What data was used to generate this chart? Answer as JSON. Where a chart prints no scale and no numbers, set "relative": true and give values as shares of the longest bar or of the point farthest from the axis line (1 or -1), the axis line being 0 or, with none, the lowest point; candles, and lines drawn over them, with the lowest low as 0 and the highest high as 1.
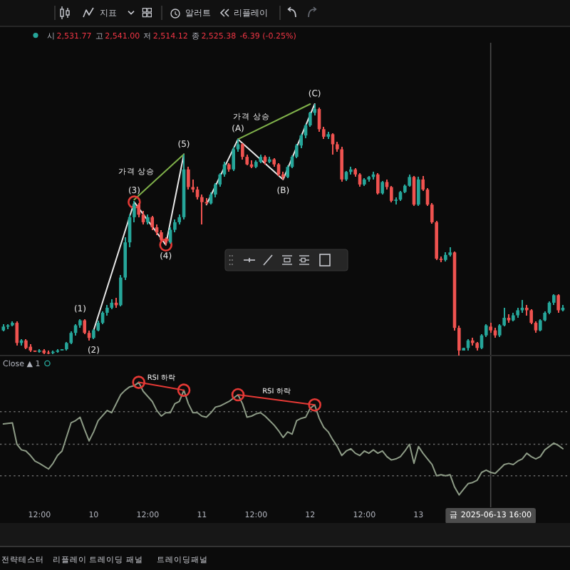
{
  "chart_data": [
    {
      "type": "candlestick",
      "relative": true,
      "xlim": [
        "2025-06-09T03:15",
        "2025-06-14T09:35"
      ],
      "x": [
        "2025-06-09T04:00",
        "2025-06-09T05:00",
        "2025-06-09T06:00",
        "2025-06-09T07:00",
        "2025-06-09T08:00",
        "2025-06-09T09:00",
        "2025-06-09T10:00",
        "2025-06-09T11:00",
        "2025-06-09T12:00",
        "2025-06-09T13:00",
        "2025-06-09T14:00",
        "2025-06-09T15:00",
        "2025-06-09T16:00",
        "2025-06-09T17:00",
        "2025-06-09T18:00",
        "2025-06-09T19:00",
        "2025-06-09T20:00",
        "2025-06-09T21:00",
        "2025-06-09T22:00",
        "2025-06-09T23:00",
        "2025-06-10T00:00",
        "2025-06-10T01:00",
        "2025-06-10T02:00",
        "2025-06-10T03:00",
        "2025-06-10T04:00",
        "2025-06-10T05:00",
        "2025-06-10T06:00",
        "2025-06-10T07:00",
        "2025-06-10T08:00",
        "2025-06-10T09:00",
        "2025-06-10T10:00",
        "2025-06-10T11:00",
        "2025-06-10T12:00",
        "2025-06-10T13:00",
        "2025-06-10T14:00",
        "2025-06-10T15:00",
        "2025-06-10T16:00",
        "2025-06-10T17:00",
        "2025-06-10T18:00",
        "2025-06-10T19:00",
        "2025-06-10T20:00",
        "2025-06-10T21:00",
        "2025-06-10T22:00",
        "2025-06-10T23:00",
        "2025-06-11T00:00",
        "2025-06-11T01:00",
        "2025-06-11T02:00",
        "2025-06-11T03:00",
        "2025-06-11T04:00",
        "2025-06-11T05:00",
        "2025-06-11T06:00",
        "2025-06-11T07:00",
        "2025-06-11T08:00",
        "2025-06-11T09:00",
        "2025-06-11T10:00",
        "2025-06-11T11:00",
        "2025-06-11T12:00",
        "2025-06-11T13:00",
        "2025-06-11T14:00",
        "2025-06-11T15:00",
        "2025-06-11T16:00",
        "2025-06-11T17:00",
        "2025-06-11T18:00",
        "2025-06-11T19:00",
        "2025-06-11T20:00",
        "2025-06-11T21:00",
        "2025-06-11T22:00",
        "2025-06-11T23:00",
        "2025-06-12T00:00",
        "2025-06-12T01:00",
        "2025-06-12T02:00",
        "2025-06-12T03:00",
        "2025-06-12T04:00",
        "2025-06-12T05:00",
        "2025-06-12T06:00",
        "2025-06-12T07:00",
        "2025-06-12T08:00",
        "2025-06-12T09:00",
        "2025-06-12T10:00",
        "2025-06-12T11:00",
        "2025-06-12T12:00",
        "2025-06-12T13:00",
        "2025-06-12T14:00",
        "2025-06-12T15:00",
        "2025-06-12T16:00",
        "2025-06-12T17:00",
        "2025-06-12T18:00",
        "2025-06-12T19:00",
        "2025-06-12T20:00",
        "2025-06-12T21:00",
        "2025-06-12T22:00",
        "2025-06-12T23:00",
        "2025-06-13T00:00",
        "2025-06-13T01:00",
        "2025-06-13T02:00",
        "2025-06-13T03:00",
        "2025-06-13T04:00",
        "2025-06-13T05:00",
        "2025-06-13T06:00",
        "2025-06-13T07:00",
        "2025-06-13T08:00",
        "2025-06-13T09:00",
        "2025-06-13T10:00",
        "2025-06-13T11:00",
        "2025-06-13T12:00",
        "2025-06-13T13:00",
        "2025-06-13T14:00",
        "2025-06-13T15:00",
        "2025-06-13T16:00",
        "2025-06-13T17:00",
        "2025-06-13T18:00",
        "2025-06-13T19:00",
        "2025-06-13T20:00",
        "2025-06-13T21:00",
        "2025-06-13T22:00",
        "2025-06-13T23:00",
        "2025-06-14T00:00",
        "2025-06-14T01:00",
        "2025-06-14T02:00",
        "2025-06-14T03:00",
        "2025-06-14T04:00",
        "2025-06-14T05:00",
        "2025-06-14T06:00",
        "2025-06-14T07:00",
        "2025-06-14T08:00"
      ],
      "ohlc": [
        [
          0.1,
          0.125,
          0.095,
          0.115
        ],
        [
          0.115,
          0.125,
          0.105,
          0.12
        ],
        [
          0.12,
          0.135,
          0.115,
          0.13
        ],
        [
          0.13,
          0.135,
          0.04,
          0.05
        ],
        [
          0.05,
          0.065,
          0.04,
          0.06
        ],
        [
          0.06,
          0.065,
          0.025,
          0.03
        ],
        [
          0.035,
          0.045,
          0.015,
          0.02
        ],
        [
          0.02,
          0.02,
          0.015,
          0.015
        ],
        [
          0.015,
          0.025,
          0.01,
          0.02
        ],
        [
          0.02,
          0.025,
          0.005,
          0.01
        ],
        [
          0.012,
          0.02,
          0.005,
          0.01
        ],
        [
          0.01,
          0.02,
          0.005,
          0.015
        ],
        [
          0.015,
          0.025,
          0.01,
          0.02
        ],
        [
          0.02,
          0.025,
          0.02,
          0.025
        ],
        [
          0.025,
          0.055,
          0.02,
          0.05
        ],
        [
          0.05,
          0.095,
          0.045,
          0.09
        ],
        [
          0.09,
          0.125,
          0.08,
          0.12
        ],
        [
          0.12,
          0.145,
          0.11,
          0.14
        ],
        [
          0.14,
          0.145,
          0.085,
          0.09
        ],
        [
          0.09,
          0.1,
          0.06,
          0.07
        ],
        [
          0.07,
          0.105,
          0.065,
          0.1
        ],
        [
          0.1,
          0.14,
          0.095,
          0.13
        ],
        [
          0.13,
          0.175,
          0.125,
          0.17
        ],
        [
          0.17,
          0.2,
          0.16,
          0.19
        ],
        [
          0.19,
          0.225,
          0.185,
          0.21
        ],
        [
          0.21,
          0.23,
          0.19,
          0.2
        ],
        [
          0.2,
          0.32,
          0.195,
          0.31
        ],
        [
          0.31,
          0.47,
          0.3,
          0.45
        ],
        [
          0.45,
          0.56,
          0.43,
          0.55
        ],
        [
          0.55,
          0.615,
          0.53,
          0.6
        ],
        [
          0.6,
          0.605,
          0.55,
          0.56
        ],
        [
          0.56,
          0.575,
          0.52,
          0.53
        ],
        [
          0.53,
          0.56,
          0.52,
          0.55
        ],
        [
          0.55,
          0.555,
          0.5,
          0.51
        ],
        [
          0.51,
          0.52,
          0.48,
          0.49
        ],
        [
          0.49,
          0.5,
          0.455,
          0.46
        ],
        [
          0.46,
          0.47,
          0.44,
          0.45
        ],
        [
          0.45,
          0.51,
          0.445,
          0.5
        ],
        [
          0.5,
          0.54,
          0.49,
          0.53
        ],
        [
          0.53,
          0.56,
          0.52,
          0.55
        ],
        [
          0.55,
          0.8,
          0.54,
          0.74
        ],
        [
          0.74,
          0.75,
          0.66,
          0.67
        ],
        [
          0.67,
          0.7,
          0.65,
          0.66
        ],
        [
          0.66,
          0.67,
          0.62,
          0.63
        ],
        [
          0.63,
          0.64,
          0.52,
          0.61
        ],
        [
          0.61,
          0.625,
          0.6,
          0.605
        ],
        [
          0.605,
          0.65,
          0.6,
          0.64
        ],
        [
          0.64,
          0.685,
          0.63,
          0.68
        ],
        [
          0.68,
          0.725,
          0.67,
          0.72
        ],
        [
          0.72,
          0.77,
          0.71,
          0.76
        ],
        [
          0.76,
          0.765,
          0.73,
          0.74
        ],
        [
          0.74,
          0.83,
          0.735,
          0.82
        ],
        [
          0.82,
          0.86,
          0.81,
          0.84
        ],
        [
          0.84,
          0.845,
          0.78,
          0.79
        ],
        [
          0.79,
          0.8,
          0.755,
          0.76
        ],
        [
          0.76,
          0.775,
          0.745,
          0.75
        ],
        [
          0.75,
          0.775,
          0.745,
          0.77
        ],
        [
          0.77,
          0.8,
          0.765,
          0.79
        ],
        [
          0.79,
          0.795,
          0.76,
          0.77
        ],
        [
          0.77,
          0.79,
          0.765,
          0.78
        ],
        [
          0.78,
          0.785,
          0.75,
          0.76
        ],
        [
          0.76,
          0.765,
          0.715,
          0.72
        ],
        [
          0.72,
          0.73,
          0.7,
          0.71
        ],
        [
          0.71,
          0.755,
          0.705,
          0.75
        ],
        [
          0.75,
          0.795,
          0.745,
          0.79
        ],
        [
          0.79,
          0.84,
          0.785,
          0.835
        ],
        [
          0.835,
          0.88,
          0.825,
          0.875
        ],
        [
          0.875,
          0.92,
          0.865,
          0.915
        ],
        [
          0.915,
          0.97,
          0.91,
          0.965
        ],
        [
          0.965,
          1,
          0.955,
          0.98
        ],
        [
          0.98,
          0.985,
          0.89,
          0.9
        ],
        [
          0.9,
          0.91,
          0.86,
          0.87
        ],
        [
          0.87,
          0.89,
          0.86,
          0.88
        ],
        [
          0.88,
          0.885,
          0.8,
          0.84
        ],
        [
          0.84,
          0.85,
          0.81,
          0.82
        ],
        [
          0.82,
          0.83,
          0.69,
          0.7
        ],
        [
          0.7,
          0.735,
          0.695,
          0.73
        ],
        [
          0.73,
          0.75,
          0.72,
          0.74
        ],
        [
          0.74,
          0.745,
          0.71,
          0.72
        ],
        [
          0.72,
          0.725,
          0.67,
          0.68
        ],
        [
          0.68,
          0.705,
          0.675,
          0.7
        ],
        [
          0.7,
          0.715,
          0.69,
          0.71
        ],
        [
          0.71,
          0.73,
          0.7,
          0.72
        ],
        [
          0.72,
          0.725,
          0.64,
          0.645
        ],
        [
          0.645,
          0.695,
          0.64,
          0.69
        ],
        [
          0.69,
          0.7,
          0.66,
          0.67
        ],
        [
          0.67,
          0.675,
          0.61,
          0.615
        ],
        [
          0.615,
          0.63,
          0.6,
          0.62
        ],
        [
          0.62,
          0.655,
          0.615,
          0.65
        ],
        [
          0.65,
          0.68,
          0.645,
          0.675
        ],
        [
          0.675,
          0.72,
          0.67,
          0.71
        ],
        [
          0.71,
          0.715,
          0.595,
          0.6
        ],
        [
          0.6,
          0.71,
          0.595,
          0.7
        ],
        [
          0.7,
          0.715,
          0.655,
          0.66
        ],
        [
          0.66,
          0.665,
          0.595,
          0.6
        ],
        [
          0.6,
          0.605,
          0.525,
          0.53
        ],
        [
          0.53,
          0.535,
          0.38,
          0.385
        ],
        [
          0.385,
          0.395,
          0.37,
          0.38
        ],
        [
          0.38,
          0.41,
          0.375,
          0.4
        ],
        [
          0.4,
          0.43,
          0.395,
          0.41
        ],
        [
          0.41,
          0.415,
          0.1,
          0.11
        ],
        [
          0.11,
          0.12,
          0,
          0.02
        ],
        [
          0.02,
          0.03,
          0.02,
          0.03
        ],
        [
          0.03,
          0.065,
          0.02,
          0.06
        ],
        [
          0.06,
          0.07,
          0.04,
          0.05
        ],
        [
          0.05,
          0.055,
          0.02,
          0.03
        ],
        [
          0.03,
          0.085,
          0.025,
          0.08
        ],
        [
          0.08,
          0.125,
          0.075,
          0.12
        ],
        [
          0.115,
          0.13,
          0.09,
          0.1
        ],
        [
          0.1,
          0.11,
          0.07,
          0.08
        ],
        [
          0.08,
          0.125,
          0.075,
          0.12
        ],
        [
          0.12,
          0.19,
          0.115,
          0.15
        ],
        [
          0.15,
          0.165,
          0.13,
          0.14
        ],
        [
          0.14,
          0.17,
          0.135,
          0.16
        ],
        [
          0.16,
          0.19,
          0.15,
          0.18
        ],
        [
          0.18,
          0.22,
          0.17,
          0.19
        ],
        [
          0.19,
          0.2,
          0.16,
          0.18
        ],
        [
          0.18,
          0.185,
          0.125,
          0.13
        ],
        [
          0.13,
          0.135,
          0.09,
          0.1
        ],
        [
          0.1,
          0.145,
          0.095,
          0.14
        ],
        [
          0.14,
          0.175,
          0.135,
          0.17
        ],
        [
          0.17,
          0.215,
          0.165,
          0.21
        ],
        [
          0.21,
          0.245,
          0.2,
          0.24
        ],
        [
          0.24,
          0.245,
          0.17,
          0.18
        ],
        [
          0.18,
          0.2,
          0.175,
          0.19
        ]
      ],
      "colors": [
        "#26a69a",
        "#26a69a",
        "#26a69a",
        "#ef5350",
        "#26a69a",
        "#ef5350",
        "#ef5350",
        "#ef5350",
        "#26a69a",
        "#ef5350",
        "#ef5350",
        "#26a69a",
        "#26a69a",
        "#26a69a",
        "#26a69a",
        "#26a69a",
        "#26a69a",
        "#26a69a",
        "#ef5350",
        "#ef5350",
        "#26a69a",
        "#26a69a",
        "#26a69a",
        "#26a69a",
        "#26a69a",
        "#ef5350",
        "#26a69a",
        "#26a69a",
        "#26a69a",
        "#26a69a",
        "#ef5350",
        "#ef5350",
        "#26a69a",
        "#ef5350",
        "#ef5350",
        "#ef5350",
        "#ef5350",
        "#26a69a",
        "#26a69a",
        "#26a69a",
        "#26a69a",
        "#ef5350",
        "#ef5350",
        "#ef5350",
        "#ef5350",
        "#ef5350",
        "#26a69a",
        "#26a69a",
        "#26a69a",
        "#26a69a",
        "#ef5350",
        "#26a69a",
        "#26a69a",
        "#ef5350",
        "#ef5350",
        "#ef5350",
        "#26a69a",
        "#26a69a",
        "#ef5350",
        "#26a69a",
        "#ef5350",
        "#ef5350",
        "#ef5350",
        "#26a69a",
        "#26a69a",
        "#26a69a",
        "#26a69a",
        "#26a69a",
        "#26a69a",
        "#26a69a",
        "#ef5350",
        "#ef5350",
        "#26a69a",
        "#ef5350",
        "#ef5350",
        "#ef5350",
        "#26a69a",
        "#26a69a",
        "#ef5350",
        "#ef5350",
        "#26a69a",
        "#26a69a",
        "#26a69a",
        "#ef5350",
        "#26a69a",
        "#ef5350",
        "#ef5350",
        "#26a69a",
        "#26a69a",
        "#26a69a",
        "#26a69a",
        "#ef5350",
        "#26a69a",
        "#ef5350",
        "#ef5350",
        "#ef5350",
        "#ef5350",
        "#ef5350",
        "#26a69a",
        "#26a69a",
        "#ef5350",
        "#ef5350",
        "#26a69a",
        "#26a69a",
        "#ef5350",
        "#ef5350",
        "#26a69a",
        "#26a69a",
        "#ef5350",
        "#ef5350",
        "#26a69a",
        "#26a69a",
        "#ef5350",
        "#26a69a",
        "#26a69a",
        "#26a69a",
        "#ef5350",
        "#ef5350",
        "#ef5350",
        "#26a69a",
        "#26a69a",
        "#26a69a",
        "#26a69a",
        "#ef5350",
        "#26a69a"
      ],
      "series": [
        {
          "type": "line",
          "color": "#e8e8e8",
          "x": [
            "2025-06-10T00:00",
            "2025-06-10T09:00",
            "2025-06-10T16:00",
            "2025-06-10T20:00"
          ],
          "values": [
            0.1,
            0.61,
            0.44,
            0.8
          ]
        },
        {
          "type": "line",
          "color": "#e8e8e8",
          "x": [
            "2025-06-11T01:00",
            "2025-06-11T08:00",
            "2025-06-11T18:00",
            "2025-06-12T01:00"
          ],
          "values": [
            0.6,
            0.86,
            0.7,
            1
          ]
        },
        {
          "type": "line",
          "name": "가격 상승",
          "color": "#7fb04a",
          "x": [
            "2025-06-10T09:00",
            "2025-06-10T20:00"
          ],
          "values": [
            0.62,
            0.8
          ]
        },
        {
          "type": "line",
          "name": "가격 상승",
          "color": "#7fb04a",
          "x": [
            "2025-06-11T08:00",
            "2025-06-12T00:00"
          ],
          "values": [
            0.86,
            1
          ]
        },
        {
          "type": "scatter",
          "color": "#e53935",
          "marker": "circle",
          "x": [
            "2025-06-10T09:00",
            "2025-06-10T16:00"
          ],
          "values": [
            0.61,
            0.44
          ]
        }
      ],
      "ref_lines": [
        {
          "axis": "x",
          "value": "2025-06-13T16:00",
          "color": "#4a4a4a"
        }
      ],
      "annotations": [
        {
          "text": "(1)",
          "x": "2025-06-09T21:00",
          "y": 0.145
        },
        {
          "text": "(2)",
          "x": "2025-06-10T00:00",
          "y": 0.065
        },
        {
          "text": "(3)",
          "x": "2025-06-10T09:00",
          "y": 0.615
        },
        {
          "text": "(4)",
          "x": "2025-06-10T16:00",
          "y": 0.44
        },
        {
          "text": "(5)",
          "x": "2025-06-10T20:00",
          "y": 0.8
        },
        {
          "text": "(A)",
          "x": "2025-06-11T08:00",
          "y": 0.86
        },
        {
          "text": "(B)",
          "x": "2025-06-11T18:00",
          "y": 0.7
        },
        {
          "text": "(C)",
          "x": "2025-06-12T01:00",
          "y": 1
        },
        "시",
        "2,531.77",
        "고",
        "2,541.00",
        "저",
        "2,514.12",
        "종",
        "2,525.38",
        "-6.39 (-0.25%)"
      ]
    },
    {
      "type": "line",
      "relative": true,
      "title": "Close ▲ 1",
      "xlim": [
        "2025-06-09T03:15",
        "2025-06-14T09:35"
      ],
      "xticks": [
        {
          "value": "2025-06-09T12:00",
          "label": "12:00"
        },
        {
          "value": "2025-06-10",
          "label": "10"
        },
        {
          "value": "2025-06-10T12:00",
          "label": "12:00"
        },
        {
          "value": "2025-06-11",
          "label": "11"
        },
        {
          "value": "2025-06-11T12:00",
          "label": "12:00"
        },
        {
          "value": "2025-06-12",
          "label": "12"
        },
        {
          "value": "2025-06-12T12:00",
          "label": "12:00"
        },
        {
          "value": "2025-06-13",
          "label": "13"
        }
      ],
      "ref_lines": [
        {
          "axis": "y",
          "value": 0.74,
          "line_style": "dotted",
          "color": "#6a6a6a"
        },
        {
          "axis": "y",
          "value": 0.45,
          "line_style": "dotted",
          "color": "#6a6a6a"
        },
        {
          "axis": "y",
          "value": 0.17,
          "line_style": "dotted",
          "color": "#6a6a6a"
        },
        {
          "axis": "x",
          "value": "2025-06-13T16:00",
          "label": "금 2025-06-13 16:00",
          "color": "#4a4a4a"
        }
      ],
      "series": [
        {
          "color": "#8d9b86",
          "x": [
            "2025-06-09T04:00",
            "2025-06-09T06:00",
            "2025-06-09T07:00",
            "2025-06-09T08:00",
            "2025-06-09T09:00",
            "2025-06-09T10:00",
            "2025-06-09T11:00",
            "2025-06-09T12:00",
            "2025-06-09T14:00",
            "2025-06-09T15:00",
            "2025-06-09T16:00",
            "2025-06-09T17:00",
            "2025-06-09T19:00",
            "2025-06-09T20:00",
            "2025-06-09T21:00",
            "2025-06-09T22:00",
            "2025-06-09T23:00",
            "2025-06-10T00:00",
            "2025-06-10T01:00",
            "2025-06-10T03:00",
            "2025-06-10T04:00",
            "2025-06-10T06:00",
            "2025-06-10T07:00",
            "2025-06-10T08:00",
            "2025-06-10T09:00",
            "2025-06-10T10:00",
            "2025-06-10T11:00",
            "2025-06-10T13:00",
            "2025-06-10T14:00",
            "2025-06-10T15:00",
            "2025-06-10T16:00",
            "2025-06-10T17:00",
            "2025-06-10T18:00",
            "2025-06-10T19:00",
            "2025-06-10T20:00",
            "2025-06-10T21:00",
            "2025-06-10T22:00",
            "2025-06-10T23:00",
            "2025-06-11T00:00",
            "2025-06-11T01:00",
            "2025-06-11T02:00",
            "2025-06-11T03:00",
            "2025-06-11T04:00",
            "2025-06-11T05:00",
            "2025-06-11T06:00",
            "2025-06-11T07:00",
            "2025-06-11T08:00",
            "2025-06-11T09:00",
            "2025-06-11T10:00",
            "2025-06-11T11:00",
            "2025-06-11T12:00",
            "2025-06-11T13:00",
            "2025-06-11T14:00",
            "2025-06-11T15:00",
            "2025-06-11T16:00",
            "2025-06-11T17:00",
            "2025-06-11T18:00",
            "2025-06-11T19:00",
            "2025-06-11T20:00",
            "2025-06-11T21:00",
            "2025-06-11T22:00",
            "2025-06-11T23:00",
            "2025-06-12T00:00",
            "2025-06-12T01:00",
            "2025-06-12T02:00",
            "2025-06-12T03:00",
            "2025-06-12T04:00",
            "2025-06-12T05:00",
            "2025-06-12T06:00",
            "2025-06-12T07:00",
            "2025-06-12T08:00",
            "2025-06-12T09:00",
            "2025-06-12T10:00",
            "2025-06-12T11:00",
            "2025-06-12T12:00",
            "2025-06-12T13:00",
            "2025-06-12T14:00",
            "2025-06-12T15:00",
            "2025-06-12T16:00",
            "2025-06-12T17:00",
            "2025-06-12T18:00",
            "2025-06-12T19:00",
            "2025-06-12T20:00",
            "2025-06-12T21:00",
            "2025-06-12T22:00",
            "2025-06-12T23:00",
            "2025-06-13T00:00",
            "2025-06-13T01:00",
            "2025-06-13T02:00",
            "2025-06-13T03:00",
            "2025-06-13T04:00",
            "2025-06-13T05:00",
            "2025-06-13T06:00",
            "2025-06-13T07:00",
            "2025-06-13T08:00",
            "2025-06-13T09:00",
            "2025-06-13T10:00",
            "2025-06-13T11:00",
            "2025-06-13T12:00",
            "2025-06-13T13:00",
            "2025-06-13T14:00",
            "2025-06-13T15:00",
            "2025-06-13T16:00",
            "2025-06-13T17:00",
            "2025-06-13T18:00",
            "2025-06-13T19:00",
            "2025-06-13T20:00",
            "2025-06-13T21:00",
            "2025-06-13T22:00",
            "2025-06-13T23:00",
            "2025-06-14T00:00",
            "2025-06-14T01:00",
            "2025-06-14T02:00",
            "2025-06-14T03:00",
            "2025-06-14T04:00",
            "2025-06-14T05:00",
            "2025-06-14T06:00",
            "2025-06-14T07:00",
            "2025-06-14T08:00"
          ],
          "values": [
            0.63,
            0.64,
            0.45,
            0.4,
            0.39,
            0.35,
            0.3,
            0.28,
            0.23,
            0.28,
            0.35,
            0.39,
            0.64,
            0.66,
            0.69,
            0.58,
            0.48,
            0.56,
            0.66,
            0.75,
            0.73,
            0.89,
            0.93,
            0.96,
            0.97,
            1,
            0.92,
            0.83,
            0.75,
            0.7,
            0.73,
            0.73,
            0.81,
            0.83,
            0.93,
            0.81,
            0.73,
            0.73,
            0.7,
            0.69,
            0.73,
            0.78,
            0.79,
            0.81,
            0.83,
            0.86,
            0.89,
            0.81,
            0.69,
            0.7,
            0.72,
            0.73,
            0.7,
            0.66,
            0.62,
            0.57,
            0.51,
            0.56,
            0.54,
            0.66,
            0.68,
            0.69,
            0.77,
            0.8,
            0.68,
            0.6,
            0.56,
            0.49,
            0.43,
            0.35,
            0.39,
            0.41,
            0.37,
            0.35,
            0.39,
            0.37,
            0.4,
            0.37,
            0.39,
            0.34,
            0.31,
            0.32,
            0.34,
            0.39,
            0.45,
            0.28,
            0.43,
            0.37,
            0.32,
            0.27,
            0.17,
            0.18,
            0.17,
            0.18,
            0.07,
            0,
            0.05,
            0.1,
            0.11,
            0.13,
            0.2,
            0.22,
            0.2,
            0.19,
            0.23,
            0.27,
            0.28,
            0.27,
            0.3,
            0.32,
            0.37,
            0.34,
            0.32,
            0.34,
            0.4,
            0.43,
            0.46,
            0.44,
            0.41
          ]
        },
        {
          "type": "line",
          "name": "RSI 하락",
          "color": "#e53935",
          "x": [
            "2025-06-10T10:00",
            "2025-06-10T20:00"
          ],
          "values": [
            1,
            0.93
          ]
        },
        {
          "type": "line",
          "name": "RSI 하락",
          "color": "#e53935",
          "x": [
            "2025-06-11T08:00",
            "2025-06-12T01:00"
          ],
          "values": [
            0.89,
            0.8
          ]
        },
        {
          "type": "scatter",
          "color": "#e53935",
          "marker": "circle",
          "x": [
            "2025-06-10T10:00",
            "2025-06-10T20:00",
            "2025-06-11T08:00",
            "2025-06-12T01:00"
          ],
          "values": [
            1,
            0.93,
            0.89,
            0.8
          ]
        }
      ]
    },
    {
      "type": "other",
      "annotations": [
        "지표",
        "알러트",
        "리플레이"
      ]
    },
    {
      "type": "other",
      "annotations": [
        "전략테스터",
        "리플레이 트레이딩 패널",
        "트레이딩패널"
      ]
    }
  ]
}
